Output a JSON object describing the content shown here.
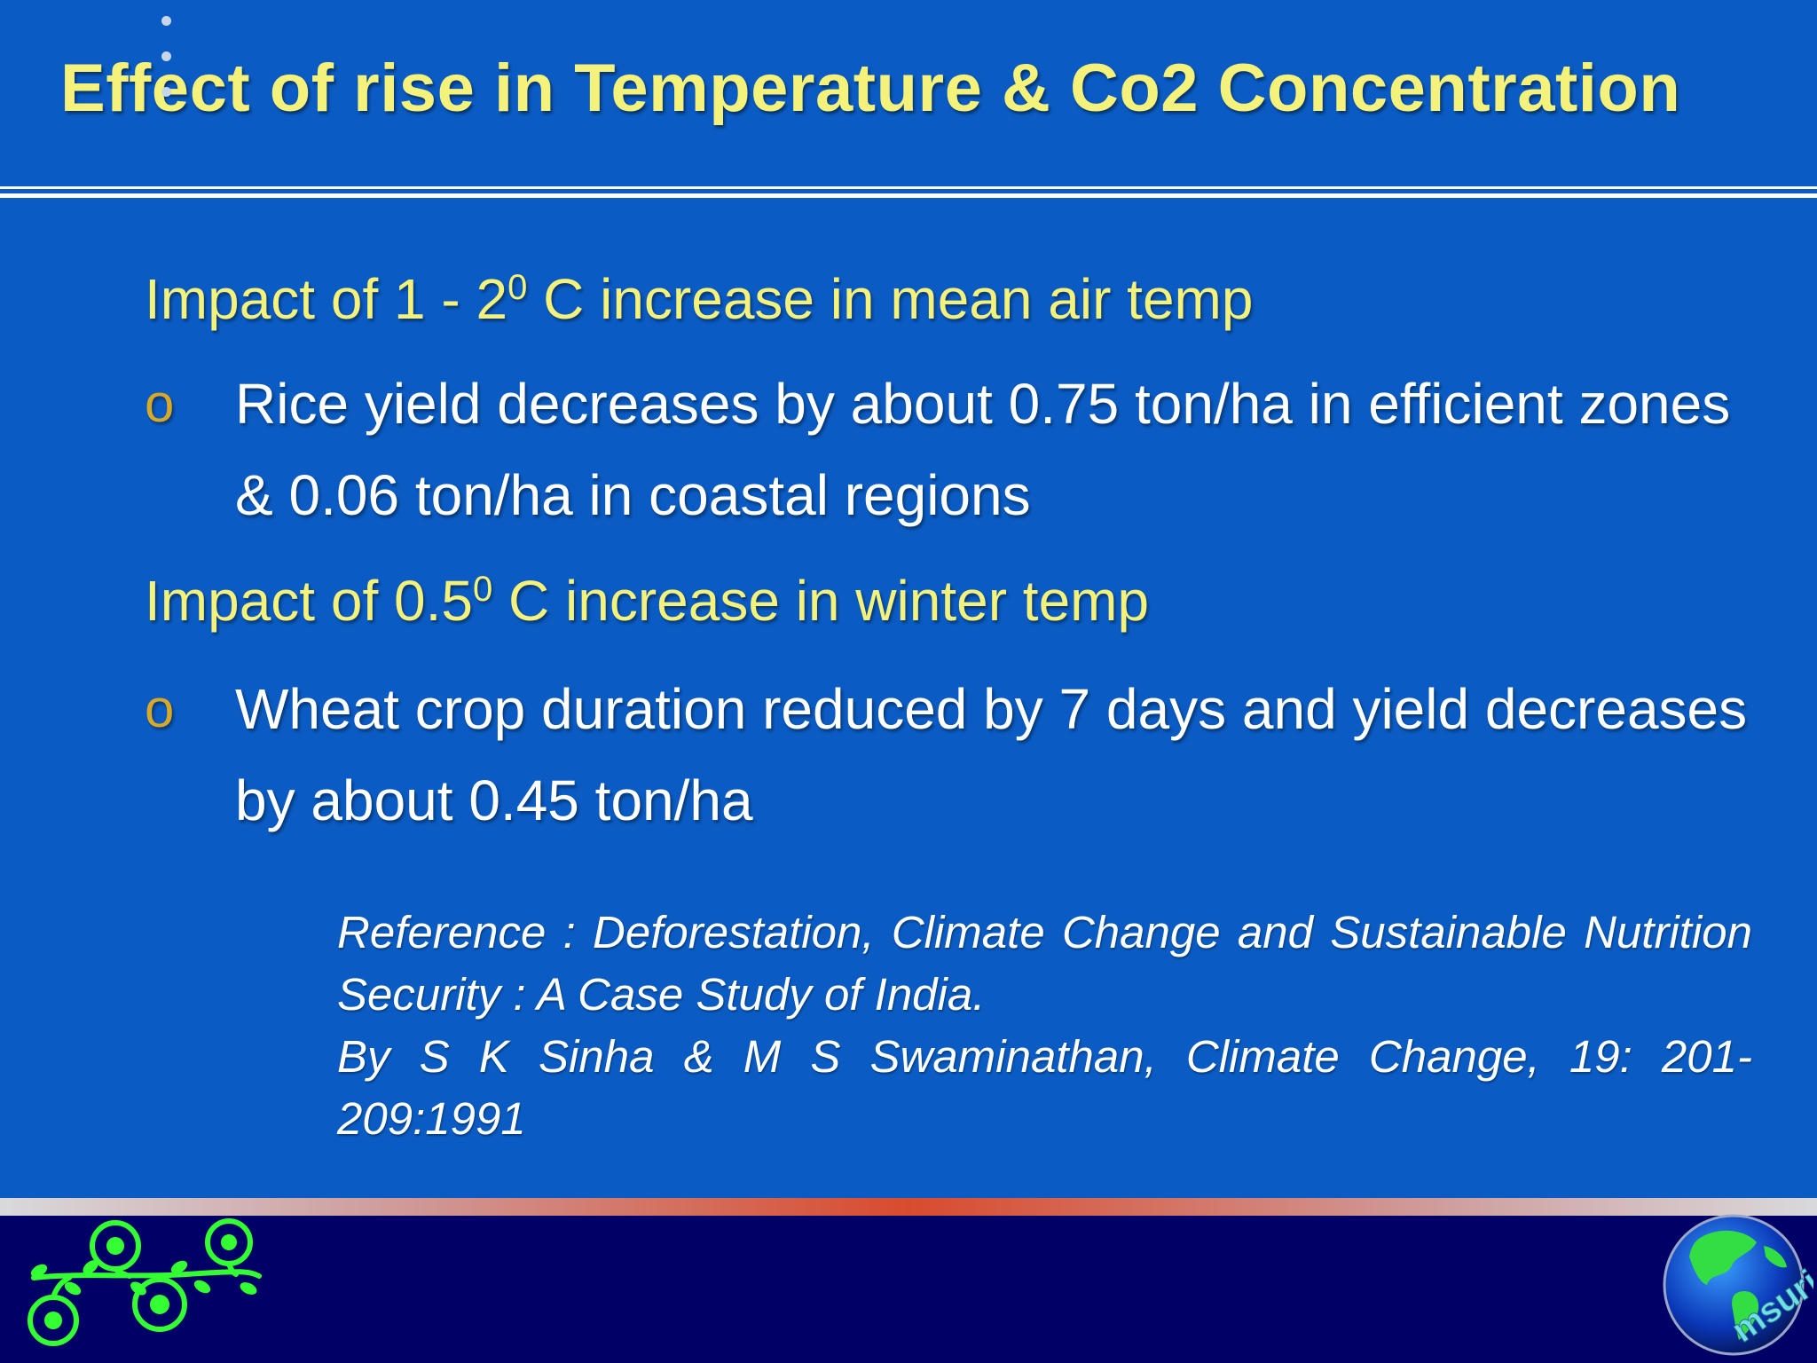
{
  "slide": {
    "title": "Effect of rise in Temperature & Co2 Concentration",
    "sections": [
      {
        "heading_pre": "Impact of 1 - 2",
        "heading_sup": "0",
        "heading_post": " C increase in mean air temp",
        "bullet_mark": "o",
        "bullet": "Rice yield decreases by about 0.75 ton/ha in efficient zones & 0.06 ton/ha in coastal regions"
      },
      {
        "heading_pre": "Impact of 0.5",
        "heading_sup": "0",
        "heading_post": " C increase in winter temp",
        "bullet_mark": "o",
        "bullet": "Wheat crop duration reduced by 7 days and yield decreases by about 0.45 ton/ha"
      }
    ],
    "reference": {
      "line1": "Reference : Deforestation, Climate Change and Sustainable Nutrition Security : A Case Study of India.",
      "line2": "By S K Sinha & M S Swaminathan, Climate Change, 19: 201-209:1991"
    },
    "logos": {
      "left": "vine-flourish-logo",
      "right": "globe-logo",
      "right_text": "msuri"
    },
    "colors": {
      "background": "#0a5cc4",
      "title": "#f4f27a",
      "heading": "#f4f27a",
      "bullet_mark": "#d8a828",
      "body_text": "#ffffff",
      "footer": "#000066",
      "footer_band_accent": "#d84b2e",
      "vine": "#33ff33"
    }
  }
}
